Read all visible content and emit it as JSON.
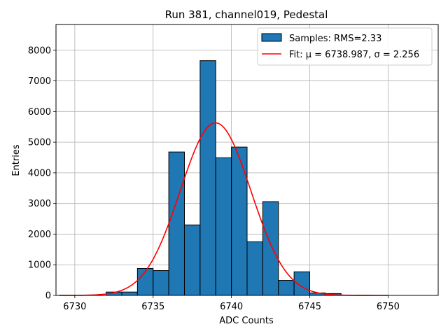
{
  "chart_data": {
    "type": "bar",
    "title": "Run 381, channel019, Pedestal",
    "xlabel": "ADC Counts",
    "ylabel": "Entries",
    "xlim": [
      6728.8,
      6753.2
    ],
    "ylim": [
      0,
      8840
    ],
    "grid": true,
    "legend_position": "top-right",
    "x_ticks": [
      6730,
      6735,
      6740,
      6745,
      6750
    ],
    "y_ticks": [
      0,
      1000,
      2000,
      3000,
      4000,
      5000,
      6000,
      7000,
      8000
    ],
    "histogram": {
      "name": "Samples: RMS=2.33",
      "bin_edges": [
        6729,
        6730,
        6731,
        6732,
        6733,
        6734,
        6735,
        6736,
        6737,
        6738,
        6739,
        6740,
        6741,
        6742,
        6743,
        6744,
        6745,
        6746,
        6747,
        6748,
        6749,
        6750,
        6751,
        6752
      ],
      "counts": [
        0,
        0,
        0,
        110,
        110,
        880,
        810,
        4680,
        2300,
        7660,
        4490,
        4840,
        1750,
        3060,
        490,
        770,
        80,
        60,
        0,
        0,
        0,
        0,
        0
      ],
      "color": "#1f77b4",
      "edge_color": "#000000"
    },
    "fit": {
      "name": "Fit: μ = 6738.987, σ = 2.256",
      "mu_label": "μ",
      "sigma_label": "σ",
      "mu": 6738.987,
      "sigma": 2.256,
      "amplitude": 5630,
      "x_range": [
        6729,
        6750
      ],
      "color": "#ff0000"
    }
  }
}
